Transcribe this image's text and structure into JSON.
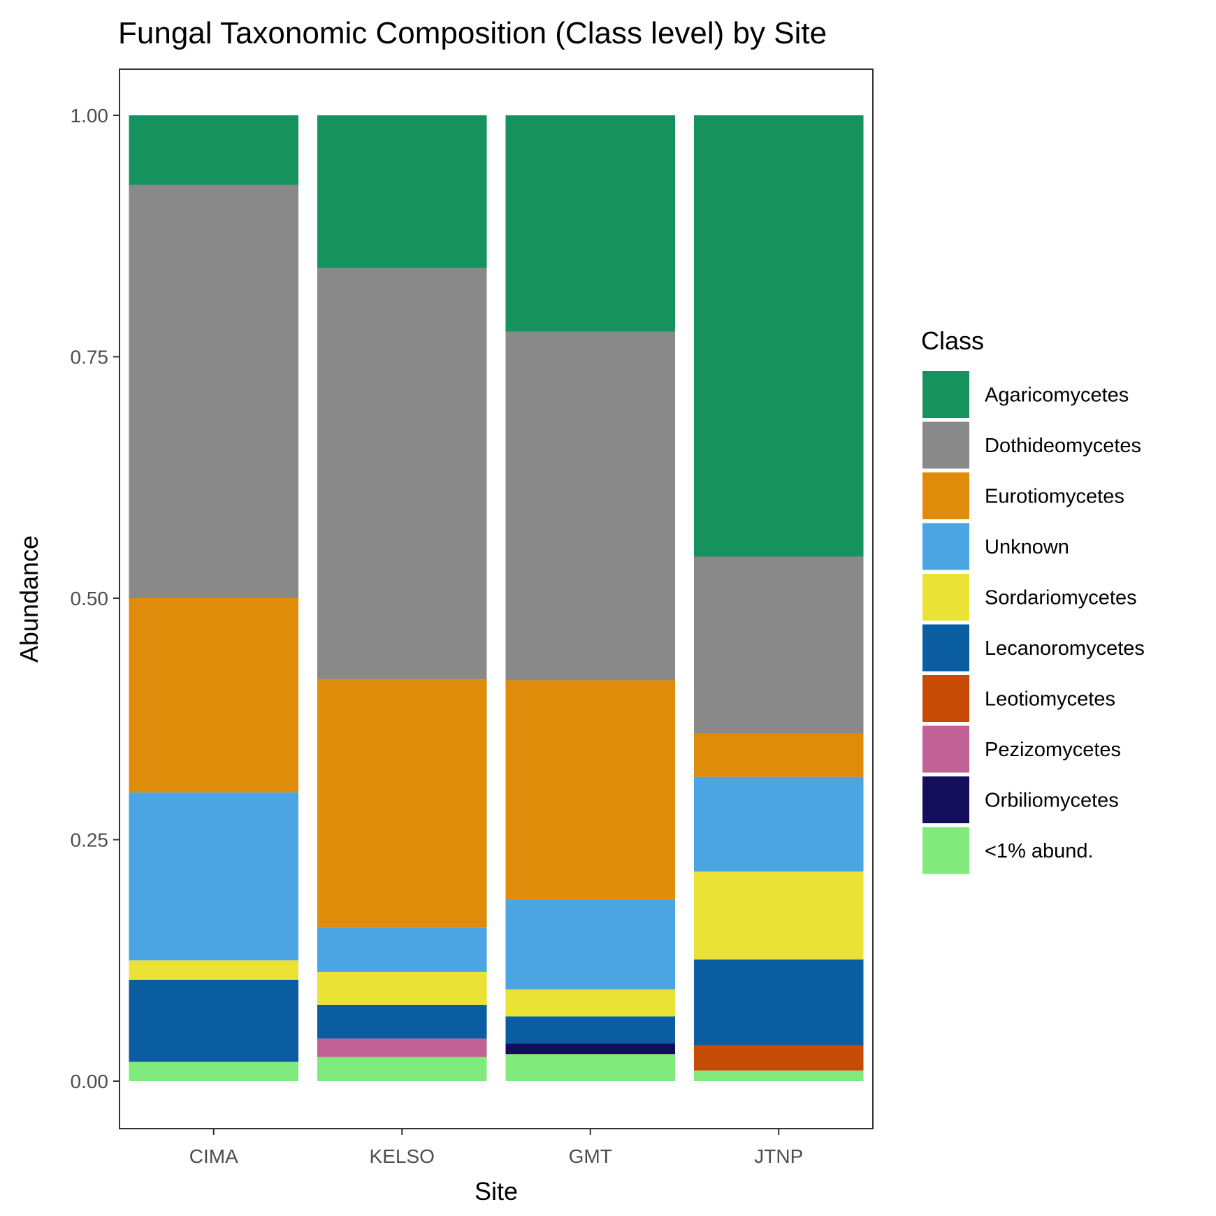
{
  "chart_data": {
    "type": "bar",
    "stacked": true,
    "title": "Fungal Taxonomic Composition (Class level) by Site",
    "xlabel": "Site",
    "ylabel": "Abundance",
    "ylim": [
      -0.05,
      1.05
    ],
    "yticks": [
      0.0,
      0.25,
      0.5,
      0.75,
      1.0
    ],
    "ytick_labels": [
      "0.00",
      "0.25",
      "0.50",
      "0.75",
      "1.00"
    ],
    "categories": [
      "CIMA",
      "KELSO",
      "GMT",
      "JTNP"
    ],
    "grid": false,
    "legend": {
      "title": "Class",
      "position": "right"
    },
    "series": [
      {
        "name": "Agaricomycetes",
        "color": "#16925F",
        "values": [
          0.072,
          0.158,
          0.224,
          0.457
        ]
      },
      {
        "name": "Dothideomycetes",
        "color": "#898989",
        "values": [
          0.428,
          0.426,
          0.361,
          0.183
        ]
      },
      {
        "name": "Eurotiomycetes",
        "color": "#DE8C09",
        "values": [
          0.201,
          0.257,
          0.227,
          0.045
        ]
      },
      {
        "name": "Unknown",
        "color": "#4AA5E2",
        "values": [
          0.174,
          0.046,
          0.093,
          0.098
        ]
      },
      {
        "name": "Sordariomycetes",
        "color": "#EBE236",
        "values": [
          0.02,
          0.034,
          0.028,
          0.091
        ]
      },
      {
        "name": "Lecanoromycetes",
        "color": "#0A5DA1",
        "values": [
          0.085,
          0.035,
          0.028,
          0.089
        ]
      },
      {
        "name": "Leotiomycetes",
        "color": "#C84B05",
        "values": [
          0.0,
          0.0,
          0.0,
          0.026
        ]
      },
      {
        "name": "Pezizomycetes",
        "color": "#C06296",
        "values": [
          0.0,
          0.019,
          0.0,
          0.0
        ]
      },
      {
        "name": "Orbiliomycetes",
        "color": "#120E5B",
        "values": [
          0.0,
          0.0,
          0.011,
          0.0
        ]
      },
      {
        "name": "<1% abund.",
        "color": "#80EB7C",
        "values": [
          0.02,
          0.025,
          0.028,
          0.011
        ]
      }
    ]
  }
}
